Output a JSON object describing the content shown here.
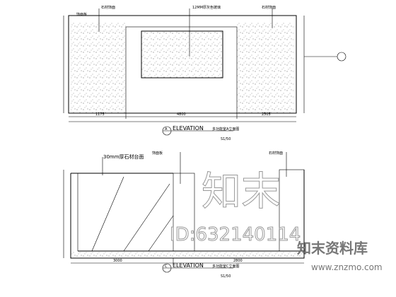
{
  "elevation_a": {
    "marker": "A",
    "title": "ELEVATION",
    "subtitle": "多功能室A立面图",
    "scale": "S1/50",
    "notes": [
      "12MM厚灰色玻璃",
      "石材饰面",
      "饰面板",
      "石材饰面"
    ],
    "dimensions": [
      "1175",
      "4800",
      "2505"
    ]
  },
  "elevation_c": {
    "marker": "C",
    "title": "ELEVATION",
    "subtitle": "多功能室C立面图",
    "scale": "S1/50",
    "notes": [
      "30mm厚石材台面",
      "饰面板",
      "石材饰面"
    ],
    "dimensions": [
      "3000",
      "2800"
    ]
  },
  "watermark": {
    "id": "ID:632140114",
    "brand": "知末",
    "library": "知末资料库",
    "url": "www.znzmo.com"
  }
}
